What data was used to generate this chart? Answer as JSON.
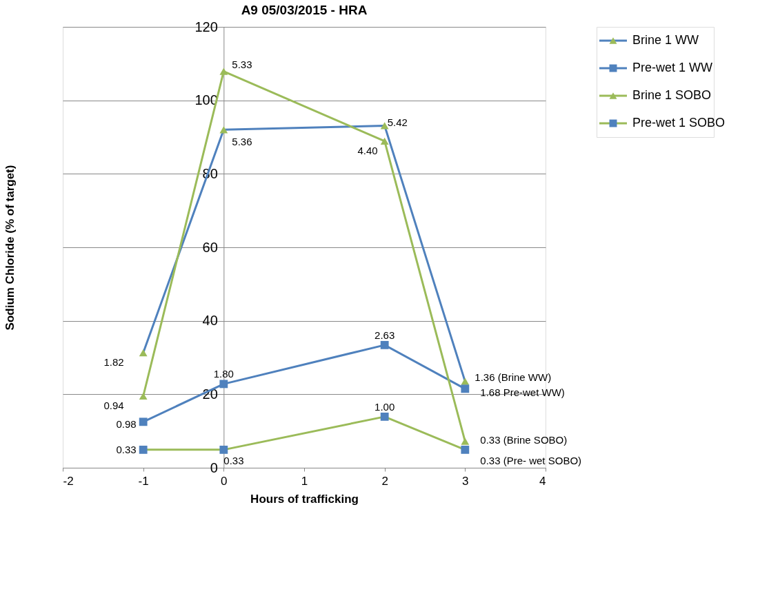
{
  "chart_data": {
    "type": "line",
    "title": "A9 05/03/2015  - HRA",
    "xlabel": "Hours of trafficking",
    "ylabel": "Sodium Chloride (% of target)",
    "xlim": [
      -2,
      4
    ],
    "xticks": [
      -2,
      -1,
      0,
      1,
      2,
      3,
      4
    ],
    "ylim": [
      0,
      120
    ],
    "yticks": [
      0,
      20,
      40,
      60,
      80,
      100,
      120
    ],
    "grid": "y",
    "legend": "right",
    "series": [
      {
        "name": "Brine 1 WW",
        "color": "#4f81bd",
        "marker": "triangle",
        "colors": [
          "#9bbb59",
          "#9bbb59",
          "#9bbb59",
          "#9bbb59"
        ],
        "x": [
          -1,
          0,
          2,
          3
        ],
        "values": [
          31.3,
          92.0,
          93.1,
          23.5
        ]
      },
      {
        "name": "Pre-wet 1 WW",
        "color": "#4f81bd",
        "marker": "square",
        "colors": [
          "#4f81bd",
          "#4f81bd",
          "#4f81bd",
          "#4f81bd"
        ],
        "x": [
          -1,
          0,
          2,
          3
        ],
        "values": [
          12.5,
          22.8,
          33.4,
          21.5
        ]
      },
      {
        "name": "Brine 1 SOBO",
        "color": "#9bbb59",
        "marker": "triangle",
        "colors": [
          "#9bbb59",
          "#9bbb59",
          "#9bbb59",
          "#9bbb59"
        ],
        "x": [
          -1,
          0,
          2,
          3
        ],
        "values": [
          19.5,
          107.9,
          88.9,
          7.2
        ]
      },
      {
        "name": "Pre-wet 1 SOBO",
        "color": "#9bbb59",
        "marker": "square",
        "colors": [
          "#4f81bd",
          "#4f81bd",
          "#4f81bd",
          "#4f81bd"
        ],
        "x": [
          -1,
          0,
          2,
          3
        ],
        "values": [
          4.9,
          4.9,
          13.9,
          4.9
        ]
      }
    ],
    "annotations": [
      {
        "text": "1.82",
        "x": -1,
        "y": 31.3
      },
      {
        "text": "0.94",
        "x": -1,
        "y": 19.5
      },
      {
        "text": "0.98",
        "x": -1,
        "y": 12.5
      },
      {
        "text": "0.33",
        "x": -1,
        "y": 4.9
      },
      {
        "text": "5.33",
        "x": 0,
        "y": 107.9
      },
      {
        "text": "5.36",
        "x": 0,
        "y": 92.0
      },
      {
        "text": "1.80",
        "x": 0,
        "y": 22.8
      },
      {
        "text": "0.33",
        "x": 0,
        "y": 4.9
      },
      {
        "text": "5.42",
        "x": 2,
        "y": 93.1
      },
      {
        "text": "4.40",
        "x": 2,
        "y": 88.9
      },
      {
        "text": "2.63",
        "x": 2,
        "y": 33.4
      },
      {
        "text": "1.00",
        "x": 2,
        "y": 13.9
      },
      {
        "text": "1.36 (Brine WW)",
        "x": 3,
        "y": 23.5
      },
      {
        "text": "1.68 Pre-wet WW)",
        "x": 3,
        "y": 21.5
      },
      {
        "text": "0.33 (Brine SOBO)",
        "x": 3,
        "y": 7.2
      },
      {
        "text": "0.33 (Pre- wet SOBO)",
        "x": 3,
        "y": 4.9
      }
    ]
  }
}
